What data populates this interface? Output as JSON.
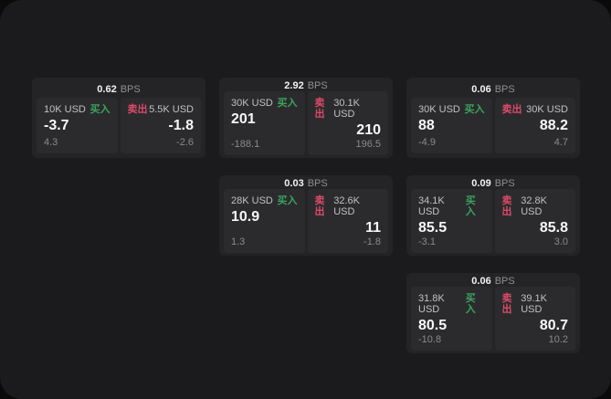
{
  "labels": {
    "bps_unit": "BPS",
    "buy": "买入",
    "sell": "卖出"
  },
  "colors": {
    "outer_background": "#0a0a0a",
    "page_background": "#1b1b1d",
    "card_background": "#242427",
    "panel_background": "#2b2b2e",
    "buy_accent": "#3ba35e",
    "sell_accent": "#dd4a68",
    "primary_text": "#f7f7f7",
    "secondary_text": "#c1c1c1",
    "muted_text": "#8a8a8a"
  },
  "cards": [
    {
      "bps": "0.62",
      "buy": {
        "amount": "10K USD",
        "price": "-3.7",
        "change": "4.3"
      },
      "sell": {
        "amount": "5.5K USD",
        "price": "-1.8",
        "change": "-2.6"
      }
    },
    {
      "bps": "2.92",
      "buy": {
        "amount": "30K USD",
        "price": "201",
        "change": "-188.1"
      },
      "sell": {
        "amount": "30.1K USD",
        "price": "210",
        "change": "196.5"
      }
    },
    {
      "bps": "0.06",
      "buy": {
        "amount": "30K USD",
        "price": "88",
        "change": "-4.9"
      },
      "sell": {
        "amount": "30K USD",
        "price": "88.2",
        "change": "4.7"
      }
    },
    {
      "bps": "0.03",
      "buy": {
        "amount": "28K USD",
        "price": "10.9",
        "change": "1.3"
      },
      "sell": {
        "amount": "32.6K USD",
        "price": "11",
        "change": "-1.8"
      }
    },
    {
      "bps": "0.09",
      "buy": {
        "amount": "34.1K USD",
        "price": "85.5",
        "change": "-3.1"
      },
      "sell": {
        "amount": "32.8K USD",
        "price": "85.8",
        "change": "3.0"
      }
    },
    {
      "bps": "0.06",
      "buy": {
        "amount": "31.8K USD",
        "price": "80.5",
        "change": "-10.8"
      },
      "sell": {
        "amount": "39.1K USD",
        "price": "80.7",
        "change": "10.2"
      }
    }
  ]
}
